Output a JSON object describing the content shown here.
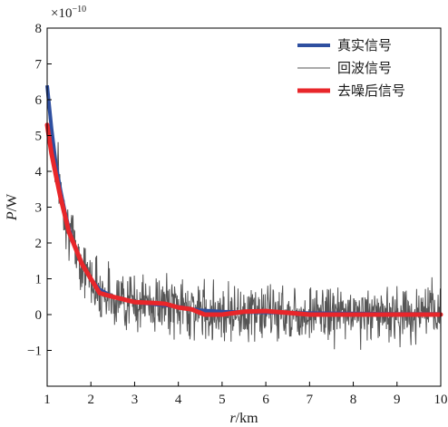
{
  "chart_data": {
    "type": "line",
    "title": "",
    "xlabel": "r/km",
    "xlabel_italic": "r",
    "xlabel_unit": "/km",
    "ylabel": "P/W",
    "ylabel_italic": "P",
    "ylabel_unit": "/W",
    "scale_note_base": "×10",
    "scale_note_exp": "−10",
    "xlim": [
      1,
      10
    ],
    "ylim": [
      -2,
      8
    ],
    "xticks": [
      1,
      2,
      3,
      4,
      5,
      6,
      7,
      8,
      9,
      10
    ],
    "yticks": [
      -1,
      0,
      1,
      2,
      3,
      4,
      5,
      6,
      7,
      8
    ],
    "ytick_labels": [
      "−1",
      "0",
      "1",
      "2",
      "3",
      "4",
      "5",
      "6",
      "7",
      "8"
    ],
    "grid": false,
    "legend_position": "top-right",
    "colors": {
      "true": "#2e4fa0",
      "echo": "#555555",
      "denoised": "#e8262a"
    },
    "series": [
      {
        "name": "真实信号",
        "key": "true",
        "x": [
          1.0,
          1.1,
          1.2,
          1.3,
          1.4,
          1.5,
          1.6,
          1.8,
          2.0,
          2.2,
          2.5,
          3.0,
          3.5,
          4.0,
          4.5,
          5.0,
          6.0,
          7.0,
          8.0,
          9.0,
          10.0
        ],
        "y": [
          6.4,
          5.2,
          4.2,
          3.5,
          2.9,
          2.4,
          2.0,
          1.4,
          1.0,
          0.7,
          0.5,
          0.35,
          0.28,
          0.22,
          0.12,
          0.08,
          0.06,
          0.04,
          0.03,
          0.02,
          0.02
        ]
      },
      {
        "name": "回波信号",
        "key": "echo",
        "generator": {
          "noise_amplitude": 0.55,
          "points": 900,
          "seed": 7
        }
      },
      {
        "name": "去噪后信号",
        "key": "denoised",
        "x": [
          1.0,
          1.1,
          1.2,
          1.3,
          1.4,
          1.5,
          1.6,
          1.8,
          2.0,
          2.2,
          2.5,
          3.0,
          3.5,
          3.7,
          4.0,
          4.3,
          4.6,
          5.0,
          5.5,
          6.0,
          6.5,
          7.0,
          8.0,
          9.0,
          9.1,
          10.0
        ],
        "y": [
          5.3,
          4.5,
          3.9,
          3.3,
          2.8,
          2.3,
          2.0,
          1.4,
          1.0,
          0.6,
          0.5,
          0.35,
          0.32,
          0.3,
          0.2,
          0.15,
          0.0,
          0.0,
          0.08,
          0.1,
          0.05,
          0.0,
          0.0,
          0.0,
          0.0,
          0.0
        ]
      }
    ]
  }
}
